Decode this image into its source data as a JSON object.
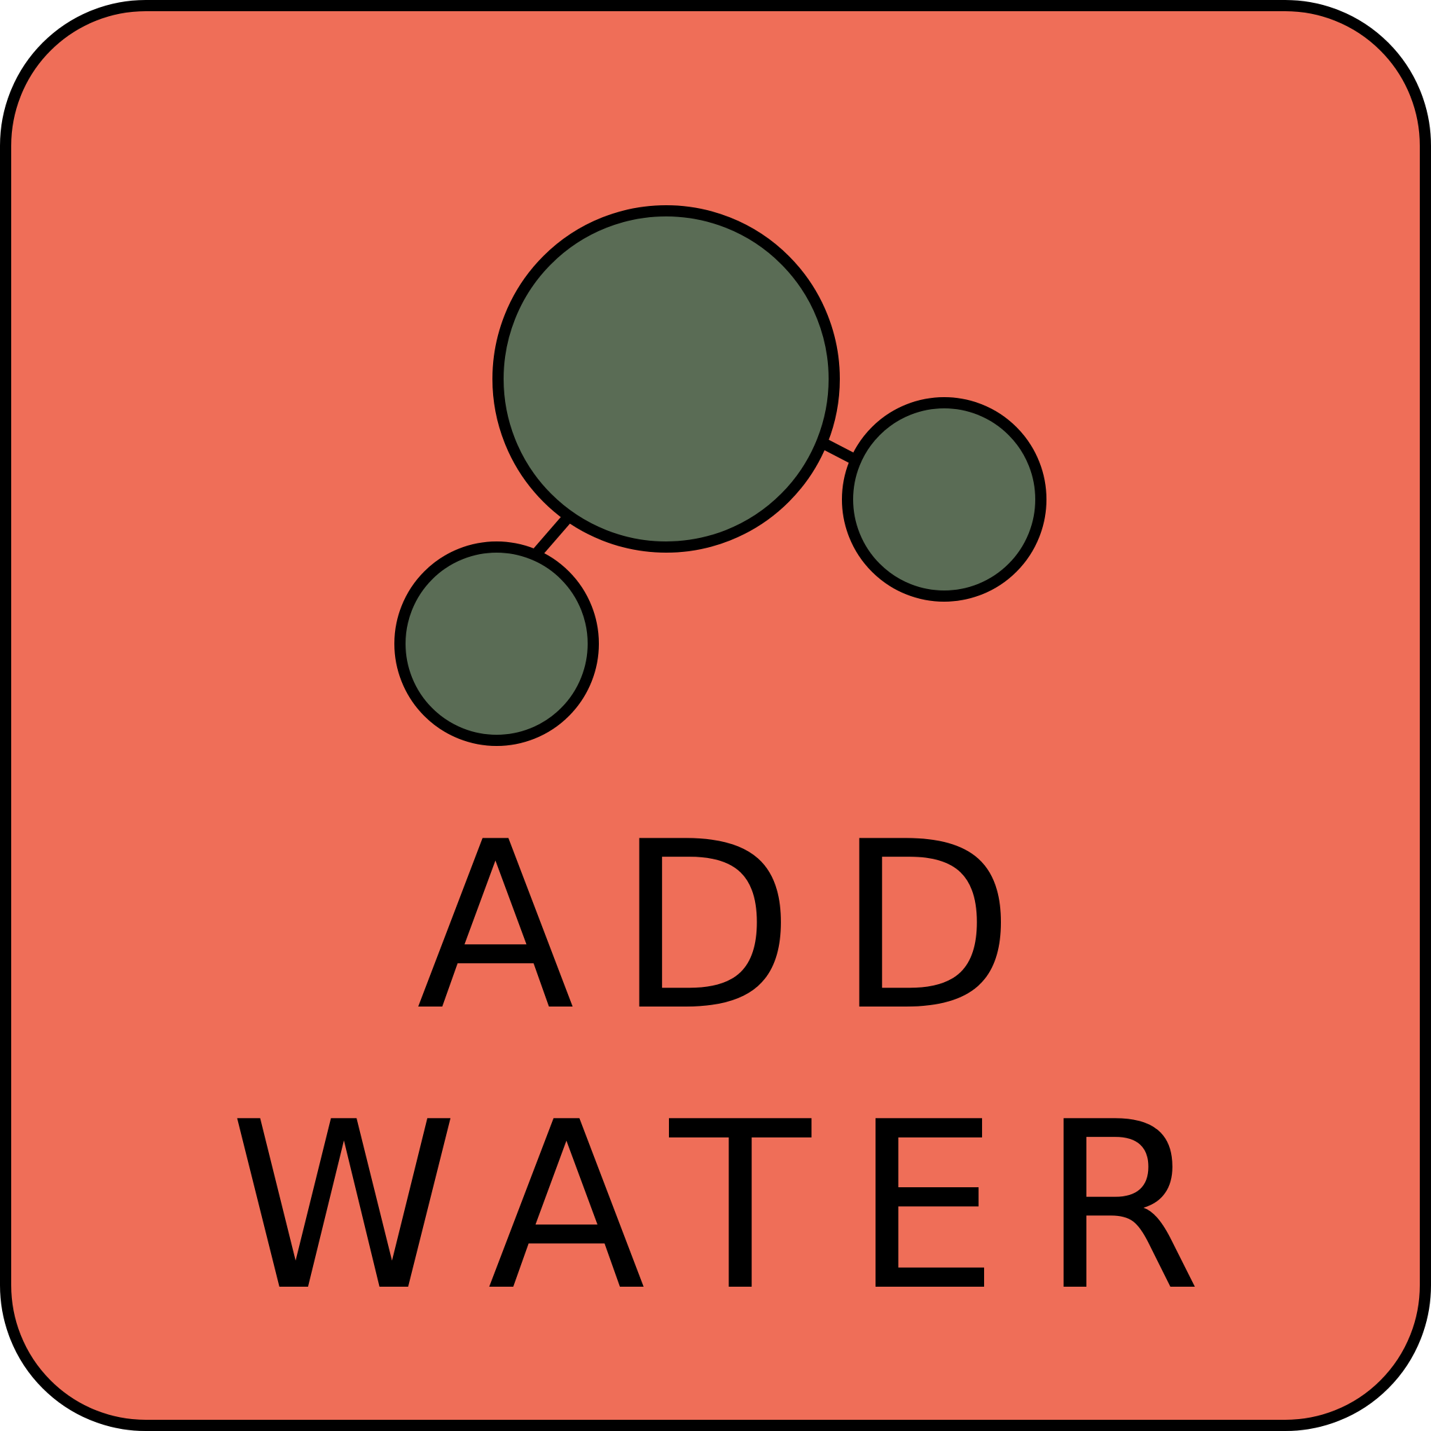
{
  "sign": {
    "label_line_1": "ADD",
    "label_line_2": "WATER",
    "icon": "water-molecule-icon"
  },
  "colors": {
    "background": "#EF6E58",
    "atom_fill": "#5A6C55",
    "outline": "#000000"
  }
}
